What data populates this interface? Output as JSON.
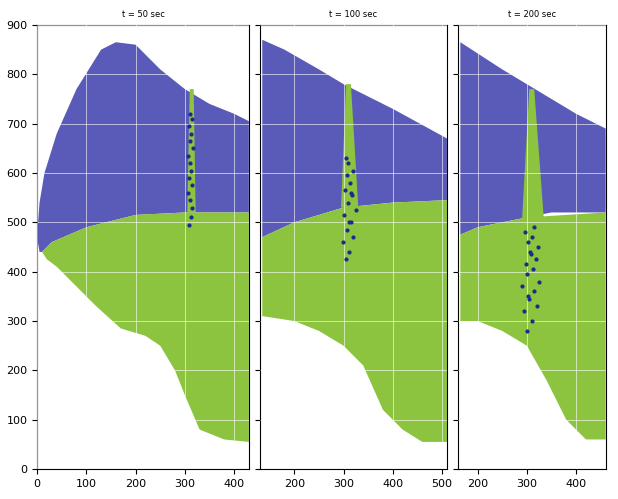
{
  "chart_data": [
    {
      "type": "region",
      "title": "t = 50 sec",
      "xlim": [
        0,
        430
      ],
      "ylim": [
        0,
        900
      ],
      "xticks": [
        0,
        100,
        200,
        300,
        400
      ],
      "yticks": [
        0,
        100,
        200,
        300,
        400,
        500,
        600,
        700,
        800,
        900
      ],
      "grid": true,
      "regions": [
        {
          "color": "#5a5ab8",
          "x": [
            5,
            0,
            5,
            15,
            40,
            80,
            130,
            160,
            200,
            250,
            300,
            350,
            400,
            430,
            430,
            300,
            200,
            100,
            30,
            10
          ],
          "y": [
            440,
            470,
            540,
            600,
            680,
            770,
            850,
            865,
            860,
            810,
            770,
            740,
            720,
            705,
            520,
            520,
            515,
            490,
            460,
            440
          ]
        },
        {
          "color": "#8cc43f",
          "x": [
            10,
            30,
            100,
            200,
            300,
            430,
            430,
            380,
            330,
            300,
            280,
            250,
            220,
            170,
            120,
            80,
            40,
            20
          ],
          "y": [
            440,
            460,
            490,
            515,
            520,
            520,
            55,
            60,
            80,
            150,
            200,
            250,
            270,
            285,
            330,
            370,
            410,
            425
          ]
        },
        {
          "color": "#8cc43f",
          "x": [
            305,
            310,
            318,
            322
          ],
          "y": [
            520,
            770,
            770,
            520
          ]
        }
      ],
      "particles": {
        "color": "#1c2a8c",
        "x": [
          308,
          312,
          315,
          310,
          306,
          314,
          309,
          313,
          311,
          307,
          316,
          310,
          312,
          308,
          314,
          311
        ],
        "y": [
          495,
          510,
          530,
          545,
          560,
          575,
          590,
          605,
          620,
          635,
          650,
          665,
          680,
          695,
          710,
          720
        ]
      }
    },
    {
      "type": "region",
      "title": "t = 100 sec",
      "xlim": [
        130,
        510
      ],
      "ylim": [
        0,
        900
      ],
      "xticks": [
        200,
        300,
        400,
        500
      ],
      "yticks": [
        0,
        100,
        200,
        300,
        400,
        500,
        600,
        700,
        800,
        900
      ],
      "grid": true,
      "tick_labels": "x",
      "regions": [
        {
          "color": "#5a5ab8",
          "x": [
            135,
            135,
            180,
            250,
            300,
            400,
            510,
            510,
            400,
            300,
            200
          ],
          "y": [
            470,
            870,
            850,
            810,
            780,
            730,
            670,
            545,
            540,
            530,
            500
          ]
        },
        {
          "color": "#8cc43f",
          "x": [
            135,
            200,
            300,
            400,
            510,
            510,
            460,
            420,
            380,
            340,
            300,
            250,
            200,
            135
          ],
          "y": [
            470,
            500,
            530,
            540,
            545,
            55,
            55,
            80,
            120,
            210,
            250,
            280,
            300,
            310
          ]
        },
        {
          "color": "#8cc43f",
          "x": [
            295,
            305,
            315,
            330
          ],
          "y": [
            530,
            780,
            780,
            530
          ]
        }
      ],
      "particles": {
        "color": "#1c2a8c",
        "x": [
          305,
          312,
          298,
          320,
          308,
          315,
          300,
          325,
          310,
          318,
          303,
          313,
          307,
          320,
          310,
          306,
          316,
          311
        ],
        "y": [
          425,
          440,
          460,
          470,
          485,
          500,
          515,
          525,
          540,
          555,
          565,
          580,
          595,
          605,
          620,
          630,
          560,
          500
        ]
      }
    },
    {
      "type": "region",
      "title": "t = 200 sec",
      "xlim": [
        160,
        460
      ],
      "ylim": [
        0,
        900
      ],
      "xticks": [
        200,
        300,
        400
      ],
      "yticks": [
        0,
        100,
        200,
        300,
        400,
        500,
        600,
        700,
        800,
        900
      ],
      "grid": true,
      "tick_labels": "x",
      "regions": [
        {
          "color": "#5a5ab8",
          "x": [
            165,
            165,
            250,
            300,
            400,
            460,
            460,
            350,
            300,
            200
          ],
          "y": [
            475,
            865,
            810,
            780,
            720,
            690,
            520,
            520,
            510,
            490
          ]
        },
        {
          "color": "#8cc43f",
          "x": [
            165,
            200,
            300,
            460,
            460,
            420,
            380,
            340,
            300,
            250,
            200,
            165
          ],
          "y": [
            475,
            490,
            510,
            520,
            60,
            60,
            100,
            180,
            250,
            280,
            300,
            300
          ]
        },
        {
          "color": "#8cc43f",
          "x": [
            290,
            305,
            315,
            335
          ],
          "y": [
            500,
            770,
            770,
            500
          ]
        }
      ],
      "particles": {
        "color": "#1c2a8c",
        "x": [
          300,
          310,
          295,
          320,
          305,
          315,
          290,
          325,
          300,
          312,
          298,
          318,
          306,
          322,
          302,
          310,
          296,
          314,
          308,
          303
        ],
        "y": [
          280,
          300,
          320,
          330,
          345,
          360,
          370,
          380,
          395,
          405,
          415,
          425,
          440,
          450,
          460,
          470,
          480,
          490,
          435,
          350
        ]
      }
    }
  ]
}
